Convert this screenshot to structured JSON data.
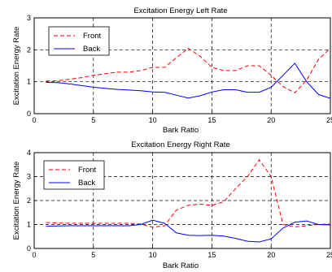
{
  "chart_data": [
    {
      "type": "line",
      "title": "Excitation Energy Left Rate",
      "xlabel": "Bark Ratio",
      "ylabel": "Excitation Energy Rate",
      "xlim": [
        0,
        25
      ],
      "ylim": [
        0,
        3
      ],
      "xticks": [
        0,
        5,
        10,
        15,
        20,
        25
      ],
      "yticks": [
        0,
        1,
        2,
        3
      ],
      "grid": "dashed",
      "legend_position": "top-left",
      "series": [
        {
          "name": "Front",
          "color": "#ff0000",
          "style": "dashed",
          "x": [
            1,
            2,
            3,
            4,
            5,
            6,
            7,
            8,
            9,
            10,
            11,
            12,
            13,
            14,
            15,
            16,
            17,
            18,
            19,
            20,
            21,
            22,
            23,
            24,
            25
          ],
          "y": [
            1.02,
            1.03,
            1.08,
            1.13,
            1.2,
            1.25,
            1.3,
            1.3,
            1.35,
            1.45,
            1.45,
            1.75,
            2.05,
            1.8,
            1.45,
            1.35,
            1.35,
            1.5,
            1.5,
            1.2,
            0.85,
            0.65,
            1.05,
            1.7,
            2.05
          ]
        },
        {
          "name": "Back",
          "color": "#0000ff",
          "style": "solid",
          "x": [
            1,
            2,
            3,
            4,
            5,
            6,
            7,
            8,
            9,
            10,
            11,
            12,
            13,
            14,
            15,
            16,
            17,
            18,
            19,
            20,
            21,
            22,
            23,
            24,
            25
          ],
          "y": [
            0.98,
            0.97,
            0.93,
            0.88,
            0.83,
            0.79,
            0.76,
            0.74,
            0.72,
            0.68,
            0.67,
            0.58,
            0.49,
            0.56,
            0.68,
            0.75,
            0.75,
            0.67,
            0.67,
            0.83,
            1.2,
            1.58,
            1.0,
            0.6,
            0.48
          ]
        }
      ]
    },
    {
      "type": "line",
      "title": "Excitation Energy Right Rate",
      "xlabel": "Bark Ratio",
      "ylabel": "Excitation Energy Rate",
      "xlim": [
        0,
        25
      ],
      "ylim": [
        0,
        4
      ],
      "xticks": [
        0,
        5,
        10,
        15,
        20,
        25
      ],
      "yticks": [
        0,
        1,
        2,
        3,
        4
      ],
      "grid": "dashed",
      "legend_position": "top-left",
      "series": [
        {
          "name": "Front",
          "color": "#ff0000",
          "style": "dashed",
          "x": [
            1,
            2,
            3,
            4,
            5,
            6,
            7,
            8,
            9,
            10,
            11,
            12,
            13,
            14,
            15,
            16,
            17,
            18,
            19,
            20,
            21,
            22,
            23,
            24,
            25
          ],
          "y": [
            1.08,
            1.06,
            1.05,
            1.05,
            1.05,
            1.05,
            1.05,
            1.05,
            1.02,
            0.88,
            0.95,
            1.6,
            1.8,
            1.85,
            1.8,
            1.95,
            2.5,
            3.0,
            3.7,
            3.0,
            1.0,
            0.9,
            0.95,
            1.0,
            1.02
          ]
        },
        {
          "name": "Back",
          "color": "#0000ff",
          "style": "solid",
          "x": [
            1,
            2,
            3,
            4,
            5,
            6,
            7,
            8,
            9,
            10,
            11,
            12,
            13,
            14,
            15,
            16,
            17,
            18,
            19,
            20,
            21,
            22,
            23,
            24,
            25
          ],
          "y": [
            0.93,
            0.94,
            0.95,
            0.95,
            0.95,
            0.95,
            0.95,
            0.95,
            1.0,
            1.18,
            1.05,
            0.65,
            0.55,
            0.54,
            0.55,
            0.52,
            0.42,
            0.3,
            0.27,
            0.4,
            0.85,
            1.1,
            1.15,
            1.0,
            0.98
          ]
        }
      ]
    }
  ]
}
